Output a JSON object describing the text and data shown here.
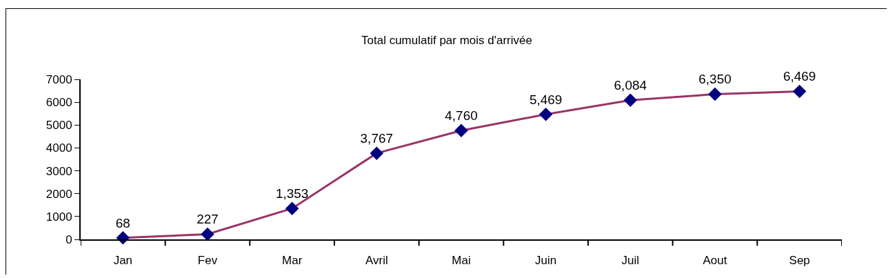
{
  "chart_data": {
    "type": "line",
    "title": "Total cumulatif par mois d'arrivée",
    "categories": [
      "Jan",
      "Fev",
      "Mar",
      "Avril",
      "Mai",
      "Juin",
      "Juil",
      "Aout",
      "Sep"
    ],
    "series": [
      {
        "color": "#993366",
        "colors": [
          "#000080",
          "#000080",
          "#000080",
          "#000080",
          "#000080",
          "#000080",
          "#000080",
          "#000080",
          "#000080"
        ],
        "values": [
          68,
          227,
          1353,
          3767,
          4760,
          5469,
          6084,
          6350,
          6469
        ],
        "value_labels": [
          "68",
          "227",
          "1,353",
          "3,767",
          "4,760",
          "5,469",
          "6,084",
          "6,350",
          "6,469"
        ]
      }
    ],
    "ylim": [
      0,
      7000
    ],
    "yticks": [
      0,
      1000,
      2000,
      3000,
      4000,
      5000,
      6000,
      7000
    ],
    "grid": false,
    "marker": "diamond",
    "line_style": "solid"
  }
}
